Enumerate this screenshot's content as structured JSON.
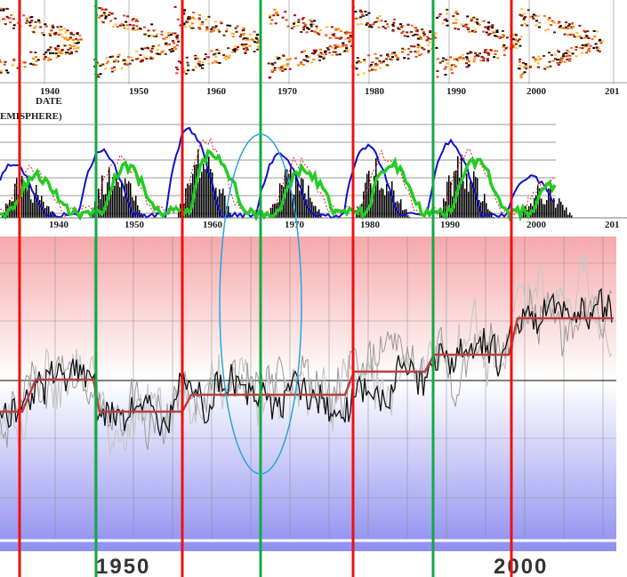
{
  "top_panel": {
    "year_labels": [
      "1940",
      "1950",
      "1960",
      "1970",
      "1980",
      "1990",
      "2000",
      "201"
    ],
    "axis_label": "DATE"
  },
  "middle_panel": {
    "title": "EMISPHERE)",
    "year_labels": [
      "1940",
      "1950",
      "1960",
      "1970",
      "1980",
      "1990",
      "2000",
      "201"
    ]
  },
  "bottom_panel": {
    "year_labels": [
      "1950",
      "2000"
    ]
  }
}
